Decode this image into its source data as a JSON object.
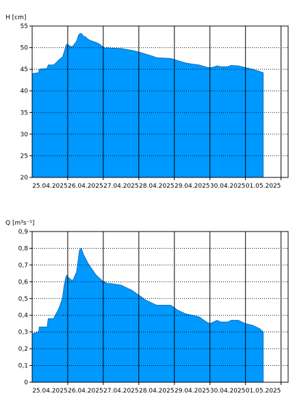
{
  "colors": {
    "fill": "#0099ff",
    "fill_stroke": "#0a5fb0",
    "grid": "#000000",
    "background": "#ffffff"
  },
  "chart_data": [
    {
      "type": "area",
      "ylabel": "H [cm]",
      "ylim": [
        20,
        55
      ],
      "yticks": [
        20,
        25,
        30,
        35,
        40,
        45,
        50,
        55
      ],
      "xlim": [
        0,
        7.2
      ],
      "x_tick_labels": [
        "25.04.2025",
        "26.04.2025",
        "27.04.2025",
        "28.04.2025",
        "29.04.2025",
        "30.04.2025",
        "01.05.2025"
      ],
      "grid": true,
      "series": [
        {
          "x": [
            0,
            0.18,
            0.2,
            0.42,
            0.45,
            0.6,
            0.7,
            0.75,
            0.85,
            0.9,
            0.95,
            0.98,
            1.0,
            1.1,
            1.15,
            1.25,
            1.3,
            1.33,
            1.38,
            1.45,
            1.5,
            1.55,
            1.6,
            1.7,
            1.8,
            1.9,
            2.0,
            2.05,
            2.1,
            2.2,
            2.5,
            2.8,
            3.0,
            3.2,
            3.4,
            3.5,
            3.7,
            3.9,
            4.1,
            4.3,
            4.5,
            4.7,
            4.9,
            5.0,
            5.1,
            5.2,
            5.3,
            5.5,
            5.6,
            5.8,
            6.0,
            6.2,
            6.4,
            6.5
          ],
          "y": [
            44.0,
            44.2,
            45.0,
            45.2,
            46.0,
            46.0,
            46.7,
            47.2,
            47.8,
            49.0,
            50.5,
            50.8,
            50.7,
            50.2,
            50.4,
            51.5,
            52.8,
            53.2,
            53.3,
            52.6,
            52.5,
            52.1,
            51.8,
            51.5,
            51.2,
            50.8,
            50.1,
            49.9,
            50.0,
            49.9,
            49.8,
            49.4,
            49.0,
            48.5,
            48.0,
            47.7,
            47.6,
            47.5,
            47.0,
            46.5,
            46.2,
            46.0,
            45.5,
            45.4,
            45.5,
            45.8,
            45.6,
            45.6,
            45.9,
            45.8,
            45.4,
            45.0,
            44.5,
            44.2
          ]
        }
      ]
    },
    {
      "type": "area",
      "ylabel": "Q [m³s⁻¹]",
      "ylim": [
        0,
        0.9
      ],
      "yticks": [
        0,
        0.1,
        0.2,
        0.3,
        0.4,
        0.5,
        0.6,
        0.7,
        0.8,
        0.9
      ],
      "ytick_labels": [
        "0",
        "0,1",
        "0,2",
        "0,3",
        "0,4",
        "0,5",
        "0,6",
        "0,7",
        "0,8",
        "0,9"
      ],
      "xlim": [
        0,
        7.2
      ],
      "x_tick_labels": [
        "25.04.2025",
        "26.04.2025",
        "27.04.2025",
        "28.04.2025",
        "29.04.2025",
        "30.04.2025",
        "01.05.2025"
      ],
      "grid": true,
      "series": [
        {
          "x": [
            0,
            0.18,
            0.2,
            0.42,
            0.45,
            0.6,
            0.7,
            0.75,
            0.85,
            0.9,
            0.95,
            0.98,
            1.0,
            1.1,
            1.15,
            1.25,
            1.3,
            1.33,
            1.38,
            1.45,
            1.5,
            1.55,
            1.6,
            1.7,
            1.8,
            1.9,
            2.0,
            2.05,
            2.1,
            2.2,
            2.5,
            2.8,
            3.0,
            3.2,
            3.4,
            3.5,
            3.7,
            3.9,
            4.1,
            4.3,
            4.5,
            4.7,
            4.9,
            5.0,
            5.1,
            5.2,
            5.3,
            5.5,
            5.6,
            5.8,
            6.0,
            6.2,
            6.4,
            6.5
          ],
          "y": [
            0.29,
            0.3,
            0.33,
            0.33,
            0.38,
            0.38,
            0.42,
            0.44,
            0.5,
            0.58,
            0.63,
            0.64,
            0.63,
            0.61,
            0.61,
            0.66,
            0.74,
            0.79,
            0.8,
            0.76,
            0.74,
            0.72,
            0.7,
            0.67,
            0.64,
            0.62,
            0.6,
            0.6,
            0.59,
            0.59,
            0.58,
            0.55,
            0.52,
            0.49,
            0.47,
            0.46,
            0.46,
            0.46,
            0.43,
            0.41,
            0.4,
            0.39,
            0.36,
            0.35,
            0.36,
            0.37,
            0.36,
            0.36,
            0.37,
            0.37,
            0.35,
            0.34,
            0.32,
            0.3
          ]
        }
      ]
    }
  ]
}
